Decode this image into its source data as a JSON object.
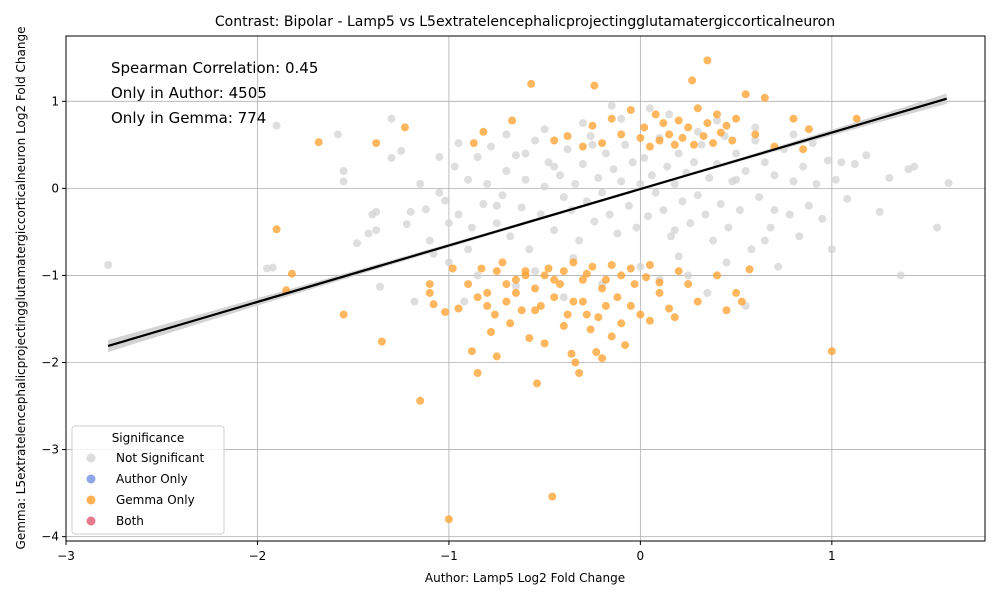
{
  "chart_data": {
    "type": "scatter",
    "title": "Contrast: Bipolar - Lamp5 vs L5extratelencephalicprojectingglutamatergiccorticalneuron",
    "xlabel": "Author: Lamp5 Log2 Fold Change",
    "ylabel": "Gemma: L5extratelencephalicprojectingglutamatergiccorticalneuron Log2 Fold Change",
    "xlim": [
      -3.0,
      1.8
    ],
    "ylim": [
      -4.05,
      1.75
    ],
    "xticks": [
      -3,
      -2,
      -1,
      0,
      1
    ],
    "yticks": [
      -4,
      -3,
      -2,
      -1,
      0,
      1
    ],
    "xtick_labels": [
      "−3",
      "−2",
      "−1",
      "0",
      "1"
    ],
    "ytick_labels": [
      "−4",
      "−3",
      "−2",
      "−1",
      "0",
      "1"
    ],
    "grid": true,
    "annotations": [
      "Spearman Correlation: 0.45",
      "Only in Author: 4505",
      "Only in Gemma: 774"
    ],
    "legend": {
      "title": "Significance",
      "position": "lower-left",
      "entries": [
        {
          "label": "Not Significant",
          "color": "#d3d3d3"
        },
        {
          "label": "Author Only",
          "color": "#6f8fe0"
        },
        {
          "label": "Gemma Only",
          "color": "#ff9f29"
        },
        {
          "label": "Both",
          "color": "#e0566f"
        }
      ]
    },
    "regression": {
      "x": [
        -2.78,
        1.6
      ],
      "y": [
        -1.81,
        1.03
      ],
      "color": "#000000"
    },
    "series": [
      {
        "name": "Not Significant",
        "color": "#d3d3d3",
        "points": [
          [
            -2.78,
            -0.88
          ],
          [
            -1.95,
            -0.92
          ],
          [
            -1.92,
            -0.91
          ],
          [
            -1.9,
            0.72
          ],
          [
            -1.58,
            0.62
          ],
          [
            -1.55,
            0.2
          ],
          [
            -1.55,
            0.08
          ],
          [
            -1.48,
            -0.63
          ],
          [
            -1.42,
            -0.52
          ],
          [
            -1.4,
            -0.3
          ],
          [
            -1.38,
            -0.27
          ],
          [
            -1.38,
            -0.48
          ],
          [
            -1.36,
            -1.13
          ],
          [
            -1.3,
            0.8
          ],
          [
            -1.3,
            0.35
          ],
          [
            -1.25,
            0.43
          ],
          [
            -1.22,
            -0.41
          ],
          [
            -1.2,
            -0.27
          ],
          [
            -1.18,
            -1.3
          ],
          [
            -1.15,
            0.05
          ],
          [
            -1.12,
            -0.24
          ],
          [
            -1.1,
            -0.6
          ],
          [
            -1.05,
            -0.05
          ],
          [
            -1.05,
            0.36
          ],
          [
            -1.02,
            -0.14
          ],
          [
            -1.0,
            -0.85
          ],
          [
            -0.97,
            0.25
          ],
          [
            -0.95,
            -0.3
          ],
          [
            -0.95,
            0.52
          ],
          [
            -0.92,
            -1.3
          ],
          [
            -0.9,
            0.1
          ],
          [
            -0.88,
            -0.45
          ],
          [
            -0.85,
            0.36
          ],
          [
            -0.82,
            -0.18
          ],
          [
            -0.8,
            0.05
          ],
          [
            -0.78,
            0.48
          ],
          [
            -0.75,
            -0.4
          ],
          [
            -0.72,
            -0.08
          ],
          [
            -0.7,
            0.2
          ],
          [
            -0.68,
            -0.55
          ],
          [
            -0.65,
            0.38
          ],
          [
            -0.62,
            -0.22
          ],
          [
            -0.6,
            0.1
          ],
          [
            -0.58,
            -0.7
          ],
          [
            -0.55,
            0.55
          ],
          [
            -0.52,
            -0.3
          ],
          [
            -0.5,
            0.02
          ],
          [
            -0.48,
            0.3
          ],
          [
            -0.45,
            -0.48
          ],
          [
            -0.42,
            0.15
          ],
          [
            -0.4,
            -0.1
          ],
          [
            -0.38,
            0.45
          ],
          [
            -0.36,
            -0.25
          ],
          [
            -0.34,
            0.05
          ],
          [
            -0.32,
            -0.6
          ],
          [
            -0.3,
            0.28
          ],
          [
            -0.28,
            -0.15
          ],
          [
            -0.26,
            0.6
          ],
          [
            -0.24,
            -0.38
          ],
          [
            -0.22,
            0.12
          ],
          [
            -0.2,
            -0.05
          ],
          [
            -0.18,
            0.4
          ],
          [
            -0.16,
            -0.3
          ],
          [
            -0.14,
            0.22
          ],
          [
            -0.12,
            -0.52
          ],
          [
            -0.1,
            0.08
          ],
          [
            -0.08,
            0.5
          ],
          [
            -0.06,
            -0.2
          ],
          [
            -0.04,
            0.3
          ],
          [
            -0.02,
            -0.45
          ],
          [
            0.0,
            0.05
          ],
          [
            0.02,
            0.35
          ],
          [
            0.04,
            -0.32
          ],
          [
            0.06,
            0.15
          ],
          [
            0.08,
            -0.05
          ],
          [
            0.1,
            0.58
          ],
          [
            0.12,
            -0.25
          ],
          [
            0.14,
            0.25
          ],
          [
            0.16,
            -0.55
          ],
          [
            0.18,
            0.05
          ],
          [
            0.2,
            0.4
          ],
          [
            0.22,
            -0.15
          ],
          [
            0.24,
            0.18
          ],
          [
            0.26,
            -0.4
          ],
          [
            0.28,
            0.3
          ],
          [
            0.3,
            -0.08
          ],
          [
            0.32,
            0.5
          ],
          [
            0.34,
            -0.3
          ],
          [
            0.36,
            0.12
          ],
          [
            0.38,
            -0.6
          ],
          [
            0.4,
            0.28
          ],
          [
            0.42,
            -0.18
          ],
          [
            0.44,
            0.6
          ],
          [
            0.46,
            -0.45
          ],
          [
            0.48,
            0.08
          ],
          [
            0.5,
            0.4
          ],
          [
            0.52,
            -0.25
          ],
          [
            0.55,
            0.2
          ],
          [
            0.58,
            -0.7
          ],
          [
            0.6,
            0.55
          ],
          [
            0.62,
            -0.1
          ],
          [
            0.65,
            0.3
          ],
          [
            0.68,
            -0.45
          ],
          [
            0.7,
            0.15
          ],
          [
            0.72,
            -0.9
          ],
          [
            0.75,
            0.45
          ],
          [
            0.78,
            -0.3
          ],
          [
            0.8,
            0.08
          ],
          [
            0.83,
            -0.55
          ],
          [
            0.85,
            0.25
          ],
          [
            0.88,
            -0.2
          ],
          [
            0.9,
            0.52
          ],
          [
            0.92,
            0.05
          ],
          [
            0.95,
            -0.35
          ],
          [
            0.98,
            0.32
          ],
          [
            1.0,
            -0.7
          ],
          [
            1.02,
            0.1
          ],
          [
            1.05,
            0.3
          ],
          [
            1.08,
            -0.12
          ],
          [
            1.12,
            0.28
          ],
          [
            1.18,
            0.38
          ],
          [
            1.25,
            -0.27
          ],
          [
            1.3,
            0.12
          ],
          [
            1.36,
            -1.0
          ],
          [
            1.4,
            0.22
          ],
          [
            1.43,
            0.25
          ],
          [
            1.55,
            -0.45
          ],
          [
            1.61,
            0.06
          ],
          [
            -0.65,
            -1.12
          ],
          [
            -0.4,
            -1.25
          ],
          [
            -0.2,
            -1.1
          ],
          [
            0.1,
            -1.05
          ],
          [
            0.35,
            -1.2
          ],
          [
            0.55,
            -1.35
          ],
          [
            -0.85,
            -1.0
          ],
          [
            -1.08,
            -0.75
          ],
          [
            0.25,
            -1.0
          ],
          [
            -0.55,
            -0.95
          ],
          [
            0.45,
            -0.85
          ],
          [
            -0.3,
            0.75
          ],
          [
            -0.1,
            0.8
          ],
          [
            0.15,
            0.85
          ],
          [
            0.4,
            0.78
          ],
          [
            0.6,
            0.7
          ],
          [
            -0.5,
            0.68
          ],
          [
            -0.7,
            0.62
          ],
          [
            0.8,
            0.62
          ],
          [
            -0.15,
            0.95
          ],
          [
            0.05,
            0.92
          ],
          [
            -0.35,
            -0.8
          ],
          [
            0.0,
            -0.9
          ],
          [
            0.2,
            -0.78
          ],
          [
            -0.6,
            0.4
          ],
          [
            0.3,
            0.65
          ],
          [
            -0.9,
            -0.7
          ],
          [
            0.65,
            -0.6
          ],
          [
            -0.25,
            0.5
          ],
          [
            0.18,
            -0.48
          ],
          [
            -0.45,
            0.25
          ],
          [
            0.5,
            0.1
          ],
          [
            -0.75,
            -0.2
          ],
          [
            0.7,
            -0.25
          ],
          [
            -1.0,
            -0.4
          ]
        ]
      },
      {
        "name": "Gemma Only",
        "color": "#ff9f29",
        "points": [
          [
            -1.9,
            -0.47
          ],
          [
            -1.85,
            -1.17
          ],
          [
            -1.82,
            -0.98
          ],
          [
            -1.68,
            0.53
          ],
          [
            -1.55,
            -1.45
          ],
          [
            -1.38,
            0.52
          ],
          [
            -1.35,
            -1.76
          ],
          [
            -1.23,
            0.7
          ],
          [
            -1.15,
            -2.44
          ],
          [
            -1.1,
            -1.1
          ],
          [
            -1.1,
            -1.2
          ],
          [
            -1.08,
            -1.33
          ],
          [
            -1.02,
            -1.42
          ],
          [
            -1.0,
            -3.8
          ],
          [
            -0.98,
            -0.92
          ],
          [
            -0.95,
            -1.38
          ],
          [
            -0.9,
            -1.1
          ],
          [
            -0.88,
            -1.87
          ],
          [
            -0.87,
            0.52
          ],
          [
            -0.85,
            -2.12
          ],
          [
            -0.83,
            -0.92
          ],
          [
            -0.82,
            0.65
          ],
          [
            -0.8,
            -1.2
          ],
          [
            -0.78,
            -1.65
          ],
          [
            -0.76,
            -1.45
          ],
          [
            -0.75,
            -1.93
          ],
          [
            -0.72,
            -0.85
          ],
          [
            -0.7,
            -1.3
          ],
          [
            -0.68,
            -1.55
          ],
          [
            -0.67,
            0.78
          ],
          [
            -0.65,
            -1.05
          ],
          [
            -0.62,
            -1.4
          ],
          [
            -0.6,
            -0.95
          ],
          [
            -0.58,
            -1.72
          ],
          [
            -0.57,
            1.2
          ],
          [
            -0.55,
            -1.15
          ],
          [
            -0.54,
            -2.24
          ],
          [
            -0.52,
            -1.35
          ],
          [
            -0.5,
            -1.78
          ],
          [
            -0.48,
            -0.92
          ],
          [
            -0.46,
            -3.54
          ],
          [
            -0.45,
            -1.25
          ],
          [
            -0.42,
            -1.1
          ],
          [
            -0.4,
            -1.58
          ],
          [
            -0.38,
            -1.45
          ],
          [
            -0.36,
            -1.9
          ],
          [
            -0.34,
            -2.0
          ],
          [
            -0.32,
            -2.12
          ],
          [
            -0.3,
            -1.3
          ],
          [
            -0.28,
            -0.98
          ],
          [
            -0.26,
            -1.62
          ],
          [
            -0.24,
            1.18
          ],
          [
            -0.23,
            -1.88
          ],
          [
            -0.22,
            -1.48
          ],
          [
            -0.2,
            -1.95
          ],
          [
            -0.18,
            -1.05
          ],
          [
            -0.15,
            -1.7
          ],
          [
            -0.12,
            -1.25
          ],
          [
            -0.1,
            -1.55
          ],
          [
            -0.08,
            -1.8
          ],
          [
            -0.05,
            -1.35
          ],
          [
            -0.03,
            -1.1
          ],
          [
            0.0,
            -1.45
          ],
          [
            0.03,
            -1.02
          ],
          [
            0.05,
            -1.52
          ],
          [
            0.1,
            -1.2
          ],
          [
            0.15,
            -1.38
          ],
          [
            0.18,
            -1.48
          ],
          [
            0.2,
            -0.95
          ],
          [
            0.25,
            -1.1
          ],
          [
            0.27,
            1.24
          ],
          [
            0.3,
            -1.3
          ],
          [
            0.35,
            1.47
          ],
          [
            0.4,
            -1.0
          ],
          [
            0.45,
            -1.4
          ],
          [
            0.5,
            -1.2
          ],
          [
            0.53,
            -1.3
          ],
          [
            0.55,
            1.08
          ],
          [
            0.57,
            -0.93
          ],
          [
            0.6,
            0.62
          ],
          [
            0.65,
            1.04
          ],
          [
            0.7,
            0.48
          ],
          [
            0.8,
            0.8
          ],
          [
            0.85,
            0.45
          ],
          [
            0.88,
            0.68
          ],
          [
            1.0,
            -1.87
          ],
          [
            1.13,
            0.8
          ],
          [
            -0.45,
            0.55
          ],
          [
            -0.38,
            0.6
          ],
          [
            -0.3,
            0.48
          ],
          [
            -0.25,
            0.72
          ],
          [
            -0.2,
            0.52
          ],
          [
            -0.15,
            0.8
          ],
          [
            -0.1,
            0.62
          ],
          [
            -0.05,
            0.9
          ],
          [
            0.0,
            0.58
          ],
          [
            0.02,
            0.7
          ],
          [
            0.05,
            0.48
          ],
          [
            0.08,
            0.85
          ],
          [
            0.1,
            0.55
          ],
          [
            0.12,
            0.75
          ],
          [
            0.15,
            0.62
          ],
          [
            0.18,
            0.5
          ],
          [
            0.2,
            0.78
          ],
          [
            0.22,
            0.58
          ],
          [
            0.25,
            0.7
          ],
          [
            0.28,
            0.5
          ],
          [
            0.3,
            0.92
          ],
          [
            0.33,
            0.6
          ],
          [
            0.35,
            0.75
          ],
          [
            0.38,
            0.52
          ],
          [
            0.4,
            0.85
          ],
          [
            0.42,
            0.64
          ],
          [
            0.45,
            0.72
          ],
          [
            0.48,
            0.55
          ],
          [
            0.5,
            0.8
          ],
          [
            -0.4,
            -0.95
          ],
          [
            -0.35,
            -0.85
          ],
          [
            -0.3,
            -1.05
          ],
          [
            -0.25,
            -0.9
          ],
          [
            -0.2,
            -1.15
          ],
          [
            -0.15,
            -0.88
          ],
          [
            -0.1,
            -1.0
          ],
          [
            -0.05,
            -0.92
          ],
          [
            0.05,
            -0.88
          ],
          [
            0.1,
            -1.08
          ],
          [
            -0.6,
            -1.0
          ],
          [
            -0.65,
            -1.2
          ],
          [
            -0.7,
            -1.1
          ],
          [
            -0.55,
            -1.4
          ],
          [
            -0.5,
            -1.0
          ],
          [
            -0.45,
            -1.05
          ],
          [
            -0.75,
            -0.95
          ],
          [
            -0.8,
            -1.35
          ],
          [
            -0.85,
            -1.25
          ],
          [
            -0.35,
            -1.3
          ],
          [
            -0.28,
            -1.45
          ],
          [
            -0.18,
            -1.35
          ]
        ]
      }
    ]
  }
}
